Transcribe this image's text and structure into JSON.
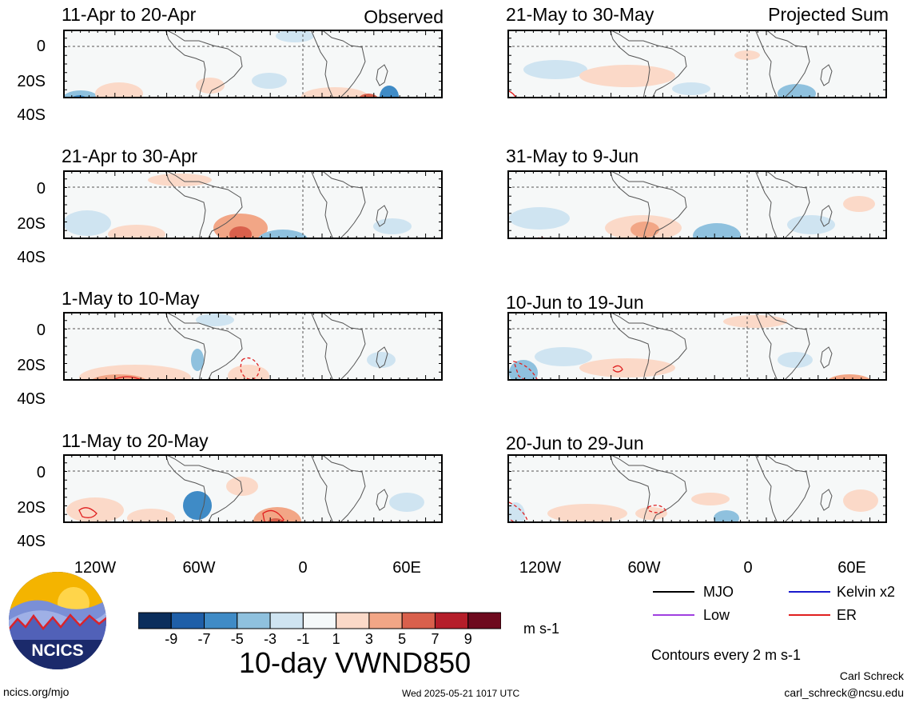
{
  "panels_left": [
    {
      "title": "11-Apr to 20-Apr",
      "label": "Observed"
    },
    {
      "title": "21-Apr to 30-Apr",
      "label": ""
    },
    {
      "title": "1-May to 10-May",
      "label": ""
    },
    {
      "title": "11-May to 20-May",
      "label": ""
    }
  ],
  "panels_right": [
    {
      "title": "21-May to 30-May",
      "label": "Projected Sum"
    },
    {
      "title": "31-May to 9-Jun",
      "label": ""
    },
    {
      "title": "10-Jun to 19-Jun",
      "label": ""
    },
    {
      "title": "20-Jun to 29-Jun",
      "label": ""
    }
  ],
  "y_ticks": [
    "0",
    "20S",
    "40S"
  ],
  "x_ticks": [
    "120W",
    "60W",
    "0",
    "60E"
  ],
  "legend": [
    {
      "label": "MJO",
      "color": "#000000"
    },
    {
      "label": "Kelvin x2",
      "color": "#1a1acc"
    },
    {
      "label": "Low",
      "color": "#a040e0"
    },
    {
      "label": "ER",
      "color": "#e02020"
    }
  ],
  "colorbar": {
    "colors": [
      "#0b2e5c",
      "#1f5fa8",
      "#3f8bc6",
      "#8fc1de",
      "#cfe4f1",
      "#f5f9fa",
      "#fbd9c8",
      "#f2a686",
      "#d9604c",
      "#b51e2a",
      "#6e0a1e"
    ],
    "ticks": [
      "-9",
      "-7",
      "-5",
      "-3",
      "-1",
      "1",
      "3",
      "5",
      "7",
      "9"
    ],
    "units": "m s-1"
  },
  "main_title": "10-day VWND850",
  "contours_note": "Contours every 2 m s-1",
  "author": "Carl Schreck",
  "email": "carl_schreck@ncsu.edu",
  "site": "ncics.org/mjo",
  "timestamp": "Wed 2025-05-21 1017 UTC",
  "logo_text": "NCICS"
}
